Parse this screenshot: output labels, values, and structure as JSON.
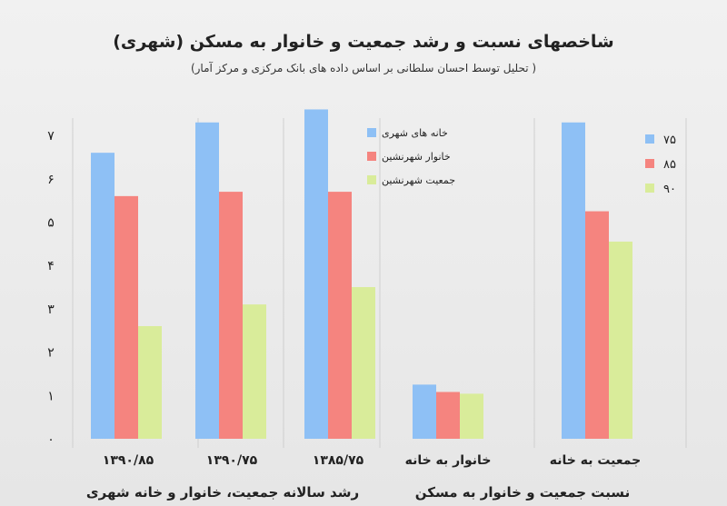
{
  "chart_data": {
    "type": "bar",
    "title": "شاخصهای نسبت و رشد جمعیت و خانوار به مسکن (شهری)",
    "subtitle": "( تحلیل توسط احسان سلطانی بر اساس داده های بانک مرکزی و مرکز آمار)",
    "ylim": [
      0,
      7.4
    ],
    "yticks": [
      "۰",
      "۱",
      "۲",
      "۳",
      "۴",
      "۵",
      "۶",
      "۷"
    ],
    "colors": [
      "#8ec0f5",
      "#f5847f",
      "#d9ec9a"
    ],
    "panels": [
      {
        "group_label": "رشد سالانه جمعیت، خانوار و خانه شهری",
        "categories": [
          "۱۳۹۰/۸۵",
          "۱۳۹۰/۷۵",
          "۱۳۸۵/۷۵"
        ],
        "series": [
          {
            "name": "خانه های شهری",
            "values": [
              6.6,
              7.3,
              7.6
            ]
          },
          {
            "name": "خانوار شهرنشین",
            "values": [
              5.6,
              5.7,
              5.7
            ]
          },
          {
            "name": "جمعیت شهرنشین",
            "values": [
              2.6,
              3.1,
              3.5
            ]
          }
        ]
      },
      {
        "group_label": "نسبت جمعیت و خانوار به مسکن",
        "categories": [
          "خانوار به خانه",
          "جمعیت به خانه"
        ],
        "series": [
          {
            "name": "۷۵",
            "values": [
              1.25,
              7.3
            ]
          },
          {
            "name": "۸۵",
            "values": [
              1.08,
              5.25
            ]
          },
          {
            "name": "۹۰",
            "values": [
              1.04,
              4.55
            ]
          }
        ]
      }
    ]
  }
}
